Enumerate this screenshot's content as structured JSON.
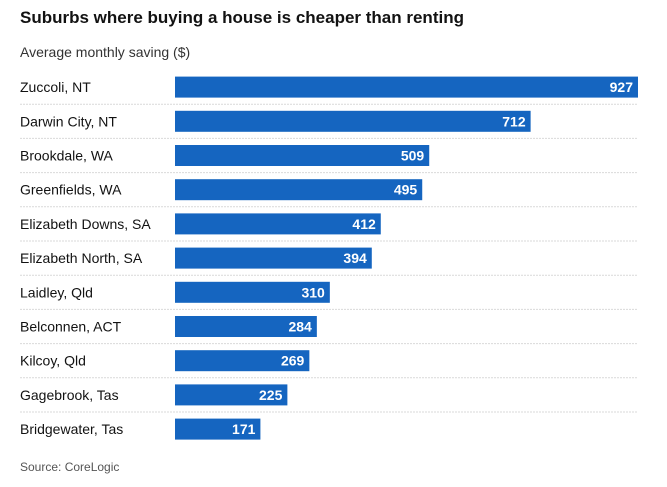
{
  "header": {
    "title": "Suburbs where buying a house is cheaper than renting",
    "subtitle": "Average monthly saving ($)"
  },
  "footer": {
    "source": "Source: CoreLogic"
  },
  "colors": {
    "bar": "#1565c0",
    "bar_label": "#ffffff",
    "row_divider": "#d9d9d9",
    "category_label": "#121212"
  },
  "chart_data": {
    "type": "bar",
    "orientation": "horizontal",
    "categories": [
      "Zuccoli, NT",
      "Darwin City, NT",
      "Brookdale, WA",
      "Greenfields, WA",
      "Elizabeth Downs, SA",
      "Elizabeth North, SA",
      "Laidley, Qld",
      "Belconnen, ACT",
      "Kilcoy, Qld",
      "Gagebrook, Tas",
      "Bridgewater, Tas"
    ],
    "values": [
      927,
      712,
      509,
      495,
      412,
      394,
      310,
      284,
      269,
      225,
      171
    ],
    "xlim": [
      0,
      927
    ],
    "title": "Suburbs where buying a house is cheaper than renting",
    "xlabel": "",
    "ylabel": "",
    "grid": false,
    "legend": false,
    "data_labels": true
  }
}
